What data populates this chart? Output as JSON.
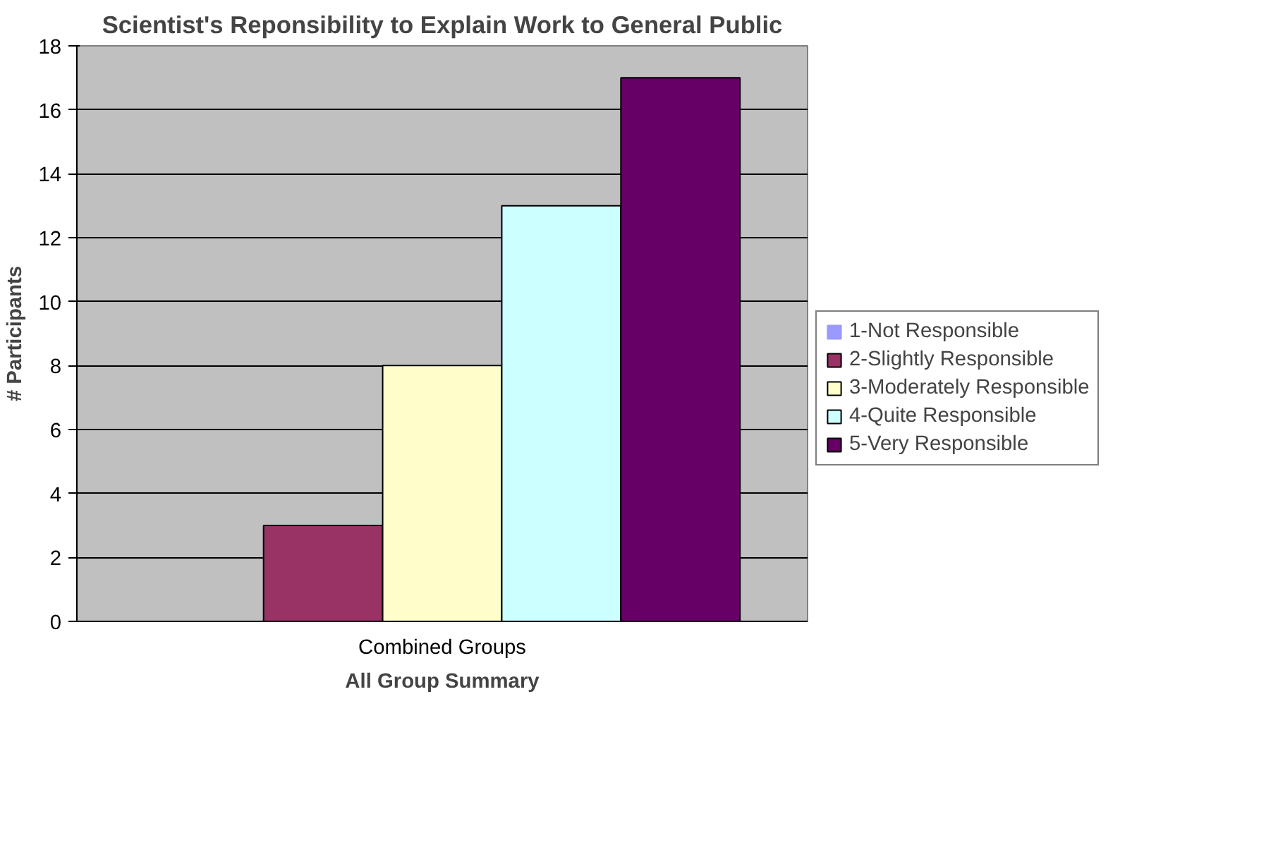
{
  "chart_data": {
    "type": "bar",
    "title": "Scientist's Reponsibility to Explain Work to General Public",
    "xlabel": "All Group Summary",
    "ylabel": "# Participants",
    "categories": [
      "Combined Groups"
    ],
    "series": [
      {
        "name": "1-Not Responsible",
        "color": "#9999ff",
        "values": [
          0
        ]
      },
      {
        "name": "2-Slightly Responsible",
        "color": "#993366",
        "values": [
          3
        ]
      },
      {
        "name": "3-Moderately Responsible",
        "color": "#ffffcc",
        "values": [
          8
        ]
      },
      {
        "name": "4-Quite Responsible",
        "color": "#ccffff",
        "values": [
          13
        ]
      },
      {
        "name": "5-Very Responsible",
        "color": "#660066",
        "values": [
          17
        ]
      }
    ],
    "ylim": [
      0,
      18
    ],
    "yticks": [
      0,
      2,
      4,
      6,
      8,
      10,
      12,
      14,
      16,
      18
    ],
    "grid": "y",
    "legend": "right"
  }
}
